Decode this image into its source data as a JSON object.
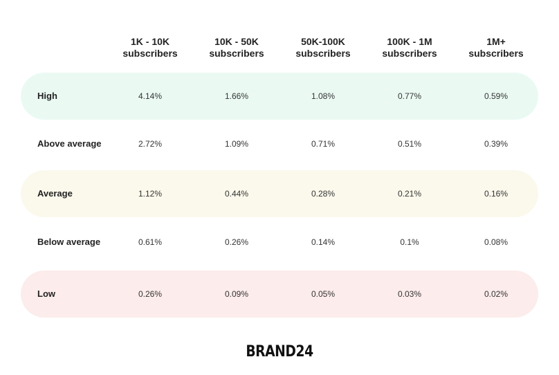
{
  "chart_data": {
    "type": "table",
    "columns": [
      {
        "line1": "1K - 10K",
        "line2": "subscribers"
      },
      {
        "line1": "10K - 50K",
        "line2": "subscribers"
      },
      {
        "line1": "50K-100K",
        "line2": "subscribers"
      },
      {
        "line1": "100K - 1M",
        "line2": "subscribers"
      },
      {
        "line1": "1M+",
        "line2": "subscribers"
      }
    ],
    "rows": [
      {
        "label": "High",
        "values": [
          "4.14%",
          "1.66%",
          "1.08%",
          "0.77%",
          "0.59%"
        ],
        "band_color": "#eafaf3"
      },
      {
        "label": "Above average",
        "values": [
          "2.72%",
          "1.09%",
          "0.71%",
          "0.51%",
          "0.39%"
        ],
        "band_color": ""
      },
      {
        "label": "Average",
        "values": [
          "1.12%",
          "0.44%",
          "0.28%",
          "0.21%",
          "0.16%"
        ],
        "band_color": "#fbf9ec"
      },
      {
        "label": "Below average",
        "values": [
          "0.61%",
          "0.26%",
          "0.14%",
          "0.1%",
          "0.08%"
        ],
        "band_color": ""
      },
      {
        "label": "Low",
        "values": [
          "0.26%",
          "0.09%",
          "0.05%",
          "0.03%",
          "0.02%"
        ],
        "band_color": "#fceceb"
      }
    ]
  },
  "brand": {
    "logo_text": "BRAND24"
  }
}
